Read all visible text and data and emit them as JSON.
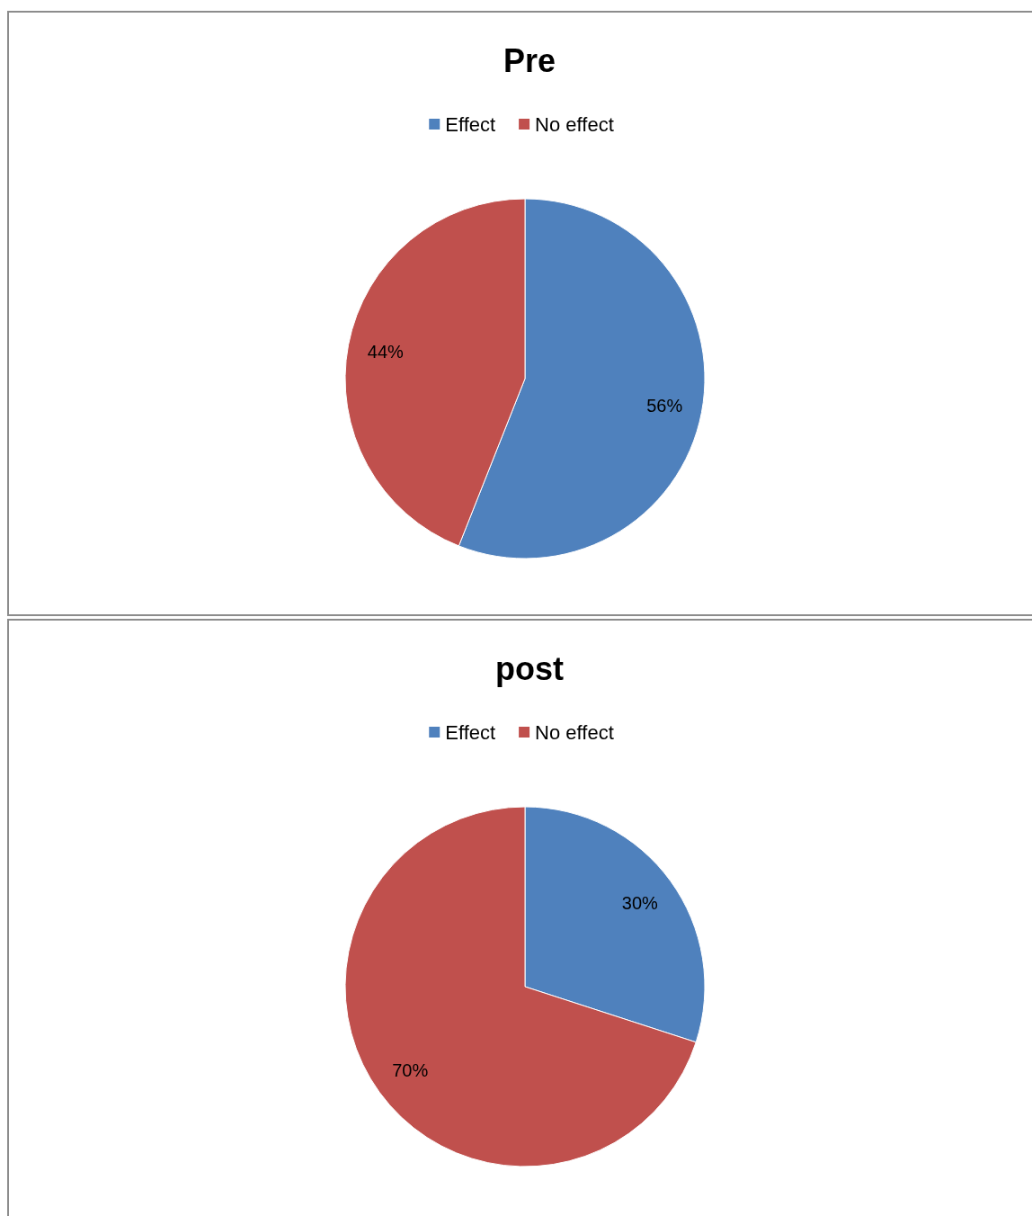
{
  "chart_data": [
    {
      "type": "pie",
      "title": "Pre",
      "categories": [
        "Effect",
        "No effect"
      ],
      "values": [
        56,
        44
      ],
      "colors": [
        "#4f81bd",
        "#c0504d"
      ],
      "value_labels": [
        "56%",
        "44%"
      ],
      "legend": "top"
    },
    {
      "type": "pie",
      "title": "post",
      "categories": [
        "Effect",
        "No effect"
      ],
      "values": [
        30,
        70
      ],
      "colors": [
        "#4f81bd",
        "#c0504d"
      ],
      "value_labels": [
        "30%",
        "70%"
      ],
      "legend": "top"
    }
  ]
}
